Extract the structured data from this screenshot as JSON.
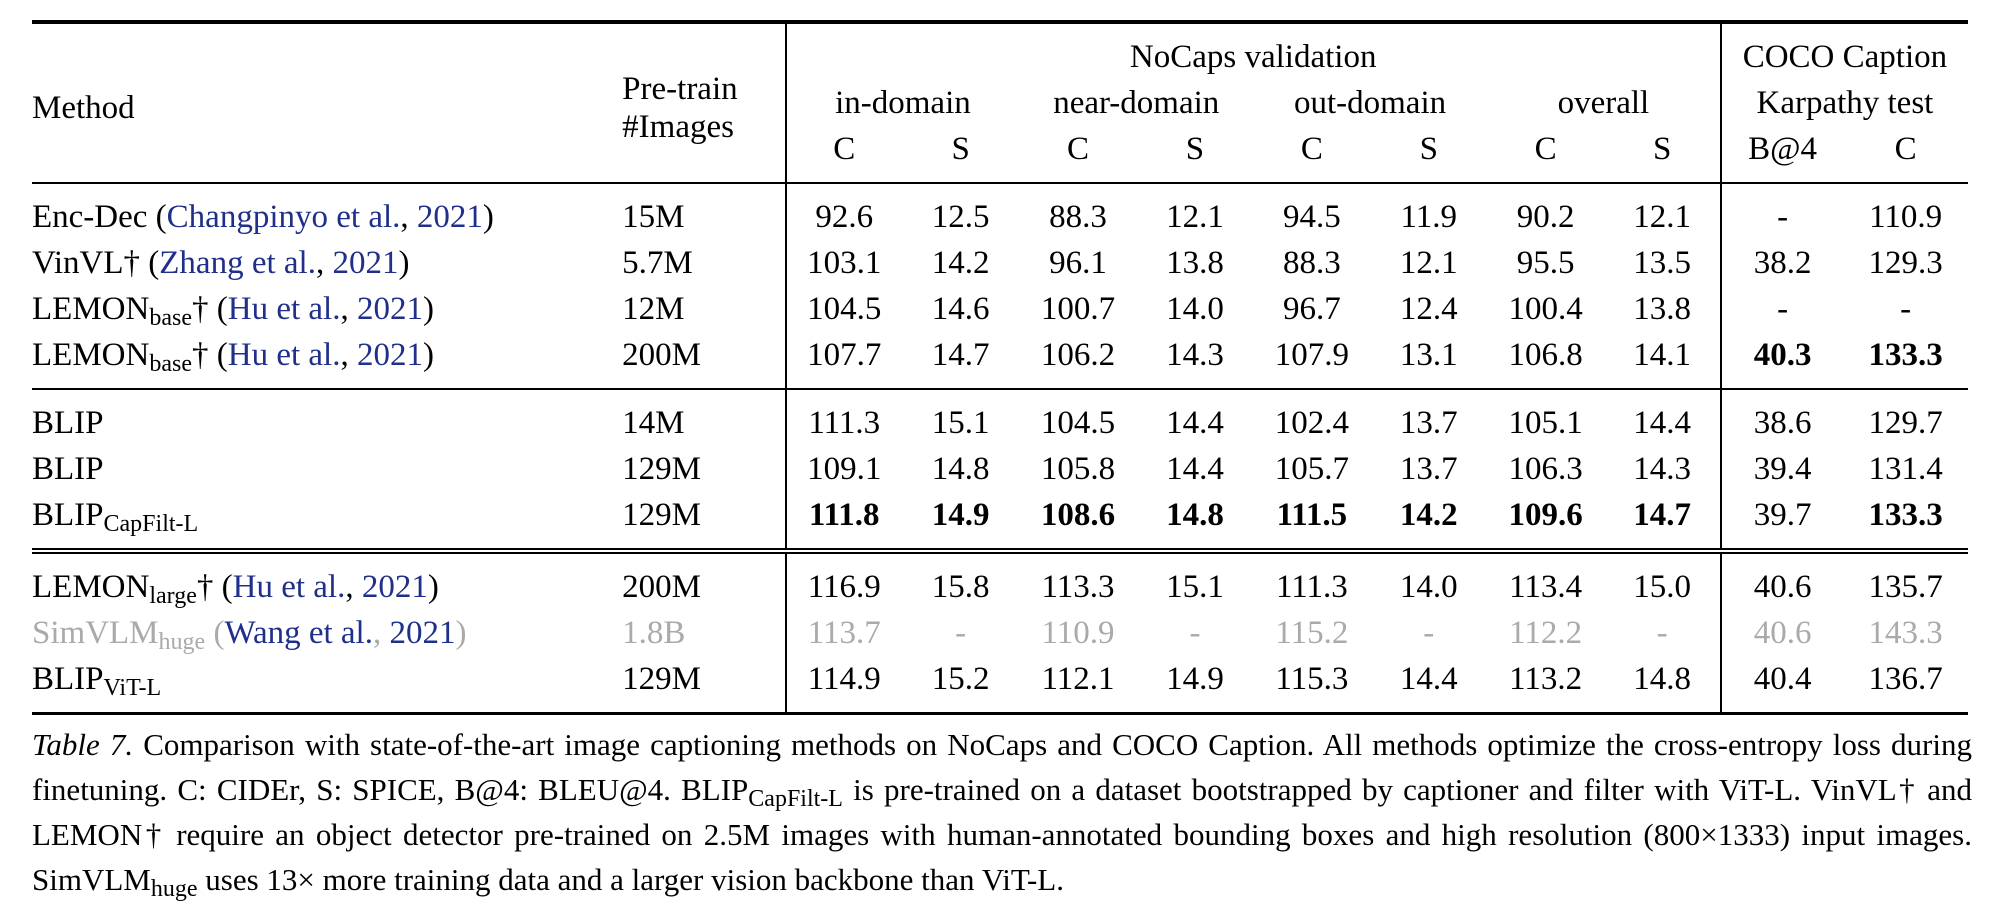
{
  "header": {
    "method": "Method",
    "pretrain_line1": "Pre-train",
    "pretrain_line2": "#Images",
    "nocaps": "NoCaps validation",
    "coco_line1": "COCO Caption",
    "coco_line2": "Karpathy test",
    "groups": [
      "in-domain",
      "near-domain",
      "out-domain",
      "overall"
    ],
    "metrics": [
      "C",
      "S",
      "C",
      "S",
      "C",
      "S",
      "C",
      "S",
      "B@4",
      "C"
    ]
  },
  "sections": [
    {
      "rows": [
        {
          "name": "Enc-Dec",
          "sub": "",
          "dagger": "",
          "cite_open": " (",
          "cite_author": "Changpinyo et al.",
          "cite_year": "2021",
          "cite_close": ")",
          "images": "15M",
          "values": [
            "92.6",
            "12.5",
            "88.3",
            "12.1",
            "94.5",
            "11.9",
            "90.2",
            "12.1",
            "-",
            "110.9"
          ],
          "bold": [],
          "gray": false
        },
        {
          "name": "VinVL",
          "sub": "",
          "dagger": "†",
          "cite_open": " (",
          "cite_author": "Zhang et al.",
          "cite_year": "2021",
          "cite_close": ")",
          "images": "5.7M",
          "values": [
            "103.1",
            "14.2",
            "96.1",
            "13.8",
            "88.3",
            "12.1",
            "95.5",
            "13.5",
            "38.2",
            "129.3"
          ],
          "bold": [],
          "gray": false
        },
        {
          "name": "LEMON",
          "sub": "base",
          "dagger": "†",
          "cite_open": " (",
          "cite_author": "Hu et al.",
          "cite_year": "2021",
          "cite_close": ")",
          "images": "12M",
          "values": [
            "104.5",
            "14.6",
            "100.7",
            "14.0",
            "96.7",
            "12.4",
            "100.4",
            "13.8",
            "-",
            "-"
          ],
          "bold": [],
          "gray": false
        },
        {
          "name": "LEMON",
          "sub": "base",
          "dagger": "†",
          "cite_open": " (",
          "cite_author": "Hu et al.",
          "cite_year": "2021",
          "cite_close": ")",
          "images": "200M",
          "values": [
            "107.7",
            "14.7",
            "106.2",
            "14.3",
            "107.9",
            "13.1",
            "106.8",
            "14.1",
            "40.3",
            "133.3"
          ],
          "bold": [
            8,
            9
          ],
          "gray": false
        }
      ]
    },
    {
      "rows": [
        {
          "name": "BLIP",
          "sub": "",
          "dagger": "",
          "cite_open": "",
          "cite_author": "",
          "cite_year": "",
          "cite_close": "",
          "images": "14M",
          "values": [
            "111.3",
            "15.1",
            "104.5",
            "14.4",
            "102.4",
            "13.7",
            "105.1",
            "14.4",
            "38.6",
            "129.7"
          ],
          "bold": [],
          "gray": false
        },
        {
          "name": "BLIP",
          "sub": "",
          "dagger": "",
          "cite_open": "",
          "cite_author": "",
          "cite_year": "",
          "cite_close": "",
          "images": "129M",
          "values": [
            "109.1",
            "14.8",
            "105.8",
            "14.4",
            "105.7",
            "13.7",
            "106.3",
            "14.3",
            "39.4",
            "131.4"
          ],
          "bold": [],
          "gray": false
        },
        {
          "name": "BLIP",
          "sub": "CapFilt-L",
          "dagger": "",
          "cite_open": "",
          "cite_author": "",
          "cite_year": "",
          "cite_close": "",
          "images": "129M",
          "values": [
            "111.8",
            "14.9",
            "108.6",
            "14.8",
            "111.5",
            "14.2",
            "109.6",
            "14.7",
            "39.7",
            "133.3"
          ],
          "bold": [
            0,
            1,
            2,
            3,
            4,
            5,
            6,
            7,
            9
          ],
          "gray": false
        }
      ]
    },
    {
      "rows": [
        {
          "name": "LEMON",
          "sub": "large",
          "dagger": "†",
          "cite_open": " (",
          "cite_author": "Hu et al.",
          "cite_year": "2021",
          "cite_close": ")",
          "images": "200M",
          "values": [
            "116.9",
            "15.8",
            "113.3",
            "15.1",
            "111.3",
            "14.0",
            "113.4",
            "15.0",
            "40.6",
            "135.7"
          ],
          "bold": [],
          "gray": false
        },
        {
          "name": "SimVLM",
          "sub": "huge",
          "dagger": "",
          "cite_open": " (",
          "cite_author": "Wang et al.",
          "cite_year": "2021",
          "cite_close": ")",
          "images": "1.8B",
          "values": [
            "113.7",
            "-",
            "110.9",
            "-",
            "115.2",
            "-",
            "112.2",
            "-",
            "40.6",
            "143.3"
          ],
          "bold": [],
          "gray": true
        },
        {
          "name": "BLIP",
          "sub": "ViT-L",
          "dagger": "",
          "cite_open": "",
          "cite_author": "",
          "cite_year": "",
          "cite_close": "",
          "images": "129M",
          "values": [
            "114.9",
            "15.2",
            "112.1",
            "14.9",
            "115.3",
            "14.4",
            "113.2",
            "14.8",
            "40.4",
            "136.7"
          ],
          "bold": [],
          "gray": false
        }
      ]
    }
  ],
  "caption": {
    "label": "Table 7.",
    "text1": " Comparison with state-of-the-art image captioning methods on NoCaps and COCO Caption. All methods optimize the cross-entropy loss during finetuning. C: CIDEr, S: SPICE, B@4: BLEU@4. BLIP",
    "sub1": "CapFilt-L",
    "text2": " is pre-trained on a dataset bootstrapped by captioner and filter with ViT-L. VinVL† and LEMON† require an object detector pre-trained on 2.5M images with human-annotated bounding boxes and high resolution (800×1333) input images. SimVLM",
    "sub2": "huge",
    "text3": " uses 13× more training data and a larger vision backbone than ViT-L."
  }
}
